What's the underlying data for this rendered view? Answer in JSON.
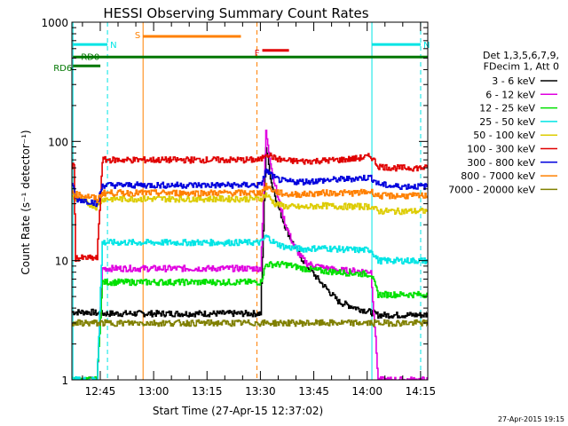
{
  "chart_data": {
    "type": "line",
    "title": "HESSI Observing Summary Count Rates",
    "xlabel": "Start Time (27-Apr-15 12:37:02)",
    "ylabel": "Count Rate (s⁻¹ detector⁻¹)",
    "y_scale": "log",
    "ylim": [
      1,
      1000
    ],
    "xlim_minutes": [
      0,
      100
    ],
    "x_ticks": [
      {
        "min": 7.97,
        "label": "12:45"
      },
      {
        "min": 22.97,
        "label": "13:00"
      },
      {
        "min": 37.97,
        "label": "13:15"
      },
      {
        "min": 52.97,
        "label": "13:30"
      },
      {
        "min": 67.97,
        "label": "13:45"
      },
      {
        "min": 82.97,
        "label": "14:00"
      },
      {
        "min": 97.97,
        "label": "14:15"
      }
    ],
    "y_ticks": [
      {
        "value": 1,
        "label": "1"
      },
      {
        "value": 10,
        "label": "10"
      },
      {
        "value": 100,
        "label": "100"
      },
      {
        "value": 1000,
        "label": "1000"
      }
    ],
    "legend_header": [
      "Det 1,3,5,6,7,9,",
      "FDecim 1, Att 0"
    ],
    "series": [
      {
        "name": "3 - 6 keV",
        "color": "#000000",
        "x": [
          0,
          6,
          7,
          8,
          8.5,
          23,
          38,
          53,
          54.5,
          56,
          58,
          60,
          62,
          64,
          66,
          70,
          75,
          80,
          84,
          86,
          90,
          93,
          100
        ],
        "y": [
          3.7,
          3.7,
          3.6,
          3.6,
          3.6,
          3.6,
          3.6,
          3.6,
          90,
          45,
          28,
          19,
          14,
          11,
          9,
          6.5,
          4.5,
          4.0,
          3.7,
          3.5,
          3.5,
          3.5,
          3.5
        ]
      },
      {
        "name": "6 - 12 keV",
        "color": "#e000e0",
        "x": [
          0,
          6,
          7,
          8.5,
          23,
          38,
          53,
          54.5,
          56,
          58,
          60,
          62,
          64,
          66,
          70,
          75,
          80,
          84,
          86,
          90,
          93,
          100
        ],
        "y": [
          1.0,
          1.0,
          1.0,
          8.6,
          8.6,
          8.6,
          8.6,
          120,
          60,
          32,
          20,
          14,
          11,
          9.5,
          8.8,
          8.3,
          8.2,
          8.1,
          1.0,
          1.0,
          1.0,
          1.0
        ]
      },
      {
        "name": "12 - 25 keV",
        "color": "#00e000",
        "x": [
          0,
          6,
          7,
          8.5,
          23,
          38,
          53,
          54.5,
          56,
          60,
          65,
          70,
          75,
          80,
          84,
          86,
          90,
          93,
          100
        ],
        "y": [
          1.0,
          1.0,
          1.0,
          6.6,
          6.6,
          6.6,
          6.6,
          9.3,
          9.3,
          9.3,
          8.6,
          8.2,
          8.0,
          7.8,
          7.7,
          5.2,
          5.2,
          5.2,
          5.2
        ]
      },
      {
        "name": "25 - 50 keV",
        "color": "#00e5e5",
        "x": [
          0,
          6,
          7,
          8.5,
          23,
          38,
          53,
          54.5,
          57,
          60,
          65,
          70,
          75,
          80,
          84,
          86,
          90,
          93,
          100
        ],
        "y": [
          1.0,
          1.0,
          1.0,
          14.2,
          14.2,
          14.2,
          14.2,
          16,
          14,
          13,
          12.5,
          12.8,
          12.5,
          12.3,
          12.3,
          10.0,
          10.0,
          10.0,
          10.0
        ]
      },
      {
        "name": "50 - 100 keV",
        "color": "#ddcc00",
        "x": [
          0,
          6,
          7,
          8.5,
          23,
          38,
          53,
          54.5,
          57,
          60,
          65,
          70,
          75,
          80,
          84,
          86,
          90,
          93,
          100
        ],
        "y": [
          34,
          29,
          28,
          33,
          33,
          33,
          33,
          36,
          30,
          28.5,
          28,
          29,
          28.5,
          28.5,
          28.5,
          26,
          26,
          26,
          26
        ]
      },
      {
        "name": "100 - 300 keV",
        "color": "#e00000",
        "x": [
          0,
          0.5,
          1,
          6,
          7,
          8.5,
          23,
          38,
          53,
          54.5,
          57,
          60,
          65,
          70,
          75,
          80,
          84,
          86,
          90,
          93,
          100
        ],
        "y": [
          62,
          62,
          10.5,
          10.5,
          10.5,
          70,
          70,
          70,
          70,
          80,
          72,
          69,
          68,
          69,
          70,
          72,
          75,
          62,
          60,
          60,
          60
        ]
      },
      {
        "name": "300 - 800 keV",
        "color": "#0000dd",
        "x": [
          0,
          1,
          6,
          7,
          8.5,
          23,
          38,
          53,
          54.5,
          57,
          60,
          65,
          70,
          75,
          80,
          84,
          86,
          90,
          93,
          100
        ],
        "y": [
          46,
          33,
          31,
          29,
          43,
          43,
          43,
          43,
          57,
          49,
          46,
          46,
          47,
          48,
          49,
          50,
          44,
          42,
          42,
          42
        ]
      },
      {
        "name": "800 - 7000 keV",
        "color": "#ff8000",
        "x": [
          0,
          1,
          6,
          7,
          8.5,
          23,
          38,
          53,
          54.5,
          57,
          60,
          65,
          70,
          75,
          80,
          84,
          86,
          90,
          93,
          100
        ],
        "y": [
          38,
          36,
          34,
          32,
          37,
          37,
          37,
          37,
          42,
          38,
          36,
          36,
          37,
          37,
          37,
          38,
          35,
          35,
          35,
          35
        ]
      },
      {
        "name": "7000 - 20000 keV",
        "color": "#808000",
        "x": [
          0,
          6,
          7,
          8.5,
          23,
          38,
          53,
          54.5,
          60,
          70,
          80,
          84,
          86,
          90,
          93,
          100
        ],
        "y": [
          3.0,
          3.0,
          3.0,
          3.0,
          3.0,
          3.0,
          3.0,
          3.0,
          3.0,
          3.0,
          3.0,
          3.0,
          3.0,
          3.0,
          3.0,
          3.0
        ]
      }
    ],
    "flags": [
      {
        "label": "N",
        "color": "#00e5e5",
        "style": "solid",
        "x": [
          0.3,
          10.0
        ],
        "y": 650
      },
      {
        "label": "N",
        "color": "#00e5e5",
        "style": "solid",
        "x": [
          84.3,
          98.0
        ],
        "y": 650
      },
      {
        "label": "S",
        "color": "#ff8000",
        "style": "solid",
        "x": [
          20.0,
          47.5
        ],
        "y": 760
      },
      {
        "label": "F",
        "color": "#e00000",
        "style": "solid",
        "x": [
          53.5,
          61.0
        ],
        "y": 580
      },
      {
        "label": "RD0",
        "color": "#007700",
        "style": "solid",
        "x": [
          0.3,
          100.0
        ],
        "y": 510
      },
      {
        "label": "RD6",
        "color": "#007700",
        "style": "solid",
        "x": [
          0.3,
          8.0
        ],
        "y": 430
      }
    ],
    "vlines": [
      {
        "x": 0.3,
        "color": "#00e5e5",
        "style": "solid"
      },
      {
        "x": 10.0,
        "color": "#00e5e5",
        "style": "dashed"
      },
      {
        "x": 20.0,
        "color": "#ff8000",
        "style": "solid"
      },
      {
        "x": 52.0,
        "color": "#ff8000",
        "style": "dashed"
      },
      {
        "x": 84.3,
        "color": "#00e5e5",
        "style": "solid"
      },
      {
        "x": 98.0,
        "color": "#00e5e5",
        "style": "dashed"
      }
    ],
    "timestamp": "27-Apr-2015 19:15"
  }
}
